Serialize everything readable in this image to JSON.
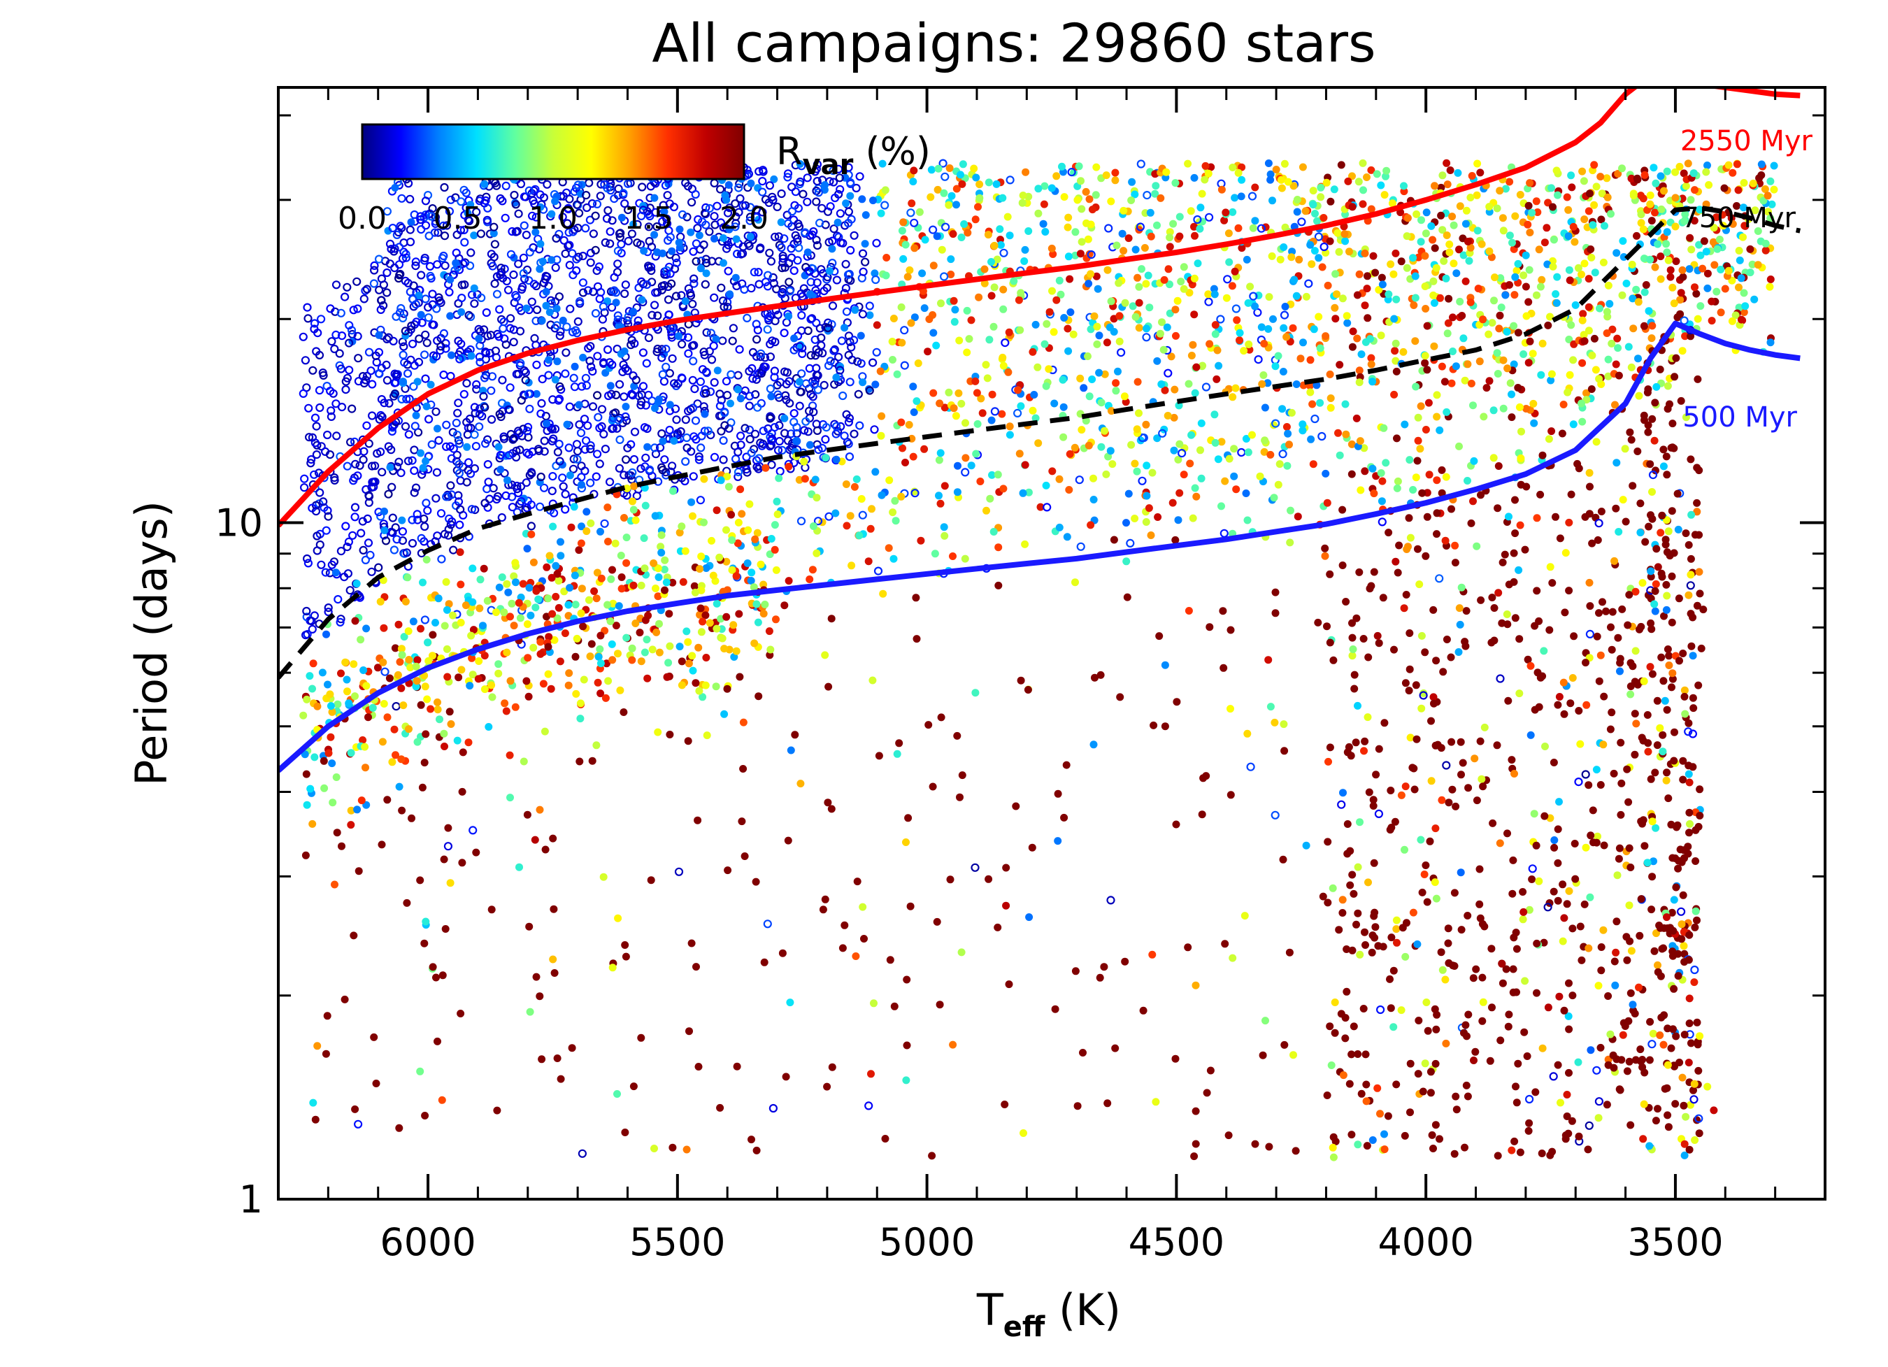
{
  "chart_data": {
    "type": "scatter",
    "title": "All campaigns: 29860 stars",
    "xlabel": {
      "main": "T",
      "sub": "eff",
      "unit": " (K)"
    },
    "ylabel": "Period (days)",
    "x_axis": {
      "reversed": true,
      "range": [
        6300,
        3200
      ],
      "ticks": [
        6000,
        5500,
        5000,
        4500,
        4000,
        3500
      ],
      "tick_labels": [
        "6000",
        "5500",
        "5000",
        "4500",
        "4000",
        "3500"
      ],
      "minor_step": 100
    },
    "y_axis": {
      "scale": "log",
      "range": [
        1,
        44
      ],
      "ticks": [
        1,
        10
      ],
      "tick_labels": [
        "1",
        "10"
      ]
    },
    "colorbar": {
      "label_main": "R",
      "label_sub": "var",
      "label_unit": " (%)",
      "ticks": [
        0.0,
        0.5,
        1.0,
        1.5,
        2.0
      ],
      "tick_labels": [
        "0.0",
        "0.5",
        "1.0",
        "1.5",
        "2.0"
      ],
      "colormap": "rainbow (dark blue to dark red)",
      "stops": [
        "#000080",
        "#0000ff",
        "#0080ff",
        "#00e0ff",
        "#60ffa0",
        "#c8ff38",
        "#ffff00",
        "#ffa000",
        "#ff3000",
        "#c00000",
        "#800000"
      ]
    },
    "series": [
      {
        "name": "2550 Myr",
        "label": "2550 Myr",
        "color": "#ff0000",
        "style": "solid",
        "x": [
          6300,
          6200,
          6100,
          6000,
          5900,
          5800,
          5700,
          5600,
          5500,
          5400,
          5300,
          5200,
          5100,
          5000,
          4900,
          4800,
          4700,
          4600,
          4500,
          4400,
          4300,
          4200,
          4100,
          4000,
          3900,
          3800,
          3700,
          3650,
          3600,
          3560,
          3500,
          3450,
          3400,
          3350,
          3300,
          3250
        ],
        "y": [
          9.9,
          11.9,
          13.8,
          15.5,
          16.8,
          17.8,
          18.6,
          19.3,
          19.9,
          20.4,
          20.9,
          21.4,
          21.9,
          22.4,
          22.9,
          23.4,
          23.9,
          24.5,
          25.1,
          25.8,
          26.6,
          27.5,
          28.6,
          30.0,
          31.6,
          33.5,
          36.5,
          39.0,
          43.0,
          45.3,
          45.0,
          44.5,
          44.0,
          43.5,
          43.0,
          42.8
        ]
      },
      {
        "name": "750 Myr",
        "label": "750 Myr",
        "color": "#000000",
        "style": "dashed",
        "x": [
          6300,
          6200,
          6100,
          6000,
          5900,
          5800,
          5700,
          5600,
          5500,
          5400,
          5300,
          5200,
          5100,
          5000,
          4900,
          4800,
          4700,
          4600,
          4500,
          4400,
          4300,
          4200,
          4100,
          4000,
          3900,
          3800,
          3700,
          3600,
          3500,
          3450,
          3400,
          3350,
          3300,
          3250
        ],
        "y": [
          5.9,
          7.2,
          8.3,
          9.1,
          9.8,
          10.3,
          10.8,
          11.3,
          11.7,
          12.1,
          12.5,
          12.8,
          13.1,
          13.4,
          13.7,
          14.0,
          14.3,
          14.7,
          15.1,
          15.5,
          15.9,
          16.3,
          16.8,
          17.4,
          18.0,
          19.0,
          20.7,
          24.5,
          29.0,
          29.2,
          28.8,
          28.2,
          27.5,
          27.0
        ]
      },
      {
        "name": "500 Myr",
        "label": "500 Myr",
        "color": "#1a1aff",
        "style": "solid",
        "x": [
          6300,
          6200,
          6100,
          6000,
          5900,
          5800,
          5700,
          5600,
          5500,
          5400,
          5300,
          5200,
          5100,
          5000,
          4900,
          4800,
          4700,
          4600,
          4500,
          4400,
          4300,
          4200,
          4100,
          4000,
          3900,
          3800,
          3700,
          3600,
          3550,
          3500,
          3450,
          3400,
          3350,
          3300,
          3250
        ],
        "y": [
          4.3,
          5.0,
          5.6,
          6.1,
          6.5,
          6.85,
          7.15,
          7.4,
          7.6,
          7.8,
          7.95,
          8.1,
          8.25,
          8.4,
          8.55,
          8.7,
          8.85,
          9.05,
          9.25,
          9.45,
          9.7,
          9.95,
          10.3,
          10.7,
          11.2,
          11.8,
          12.8,
          15.0,
          17.5,
          19.7,
          19.0,
          18.4,
          18.0,
          17.7,
          17.5
        ]
      }
    ],
    "scatter": {
      "n_shown": 29860,
      "marker": "circle, open for low R_var, filled otherwise",
      "value": "R_var (%) mapped to color"
    }
  }
}
